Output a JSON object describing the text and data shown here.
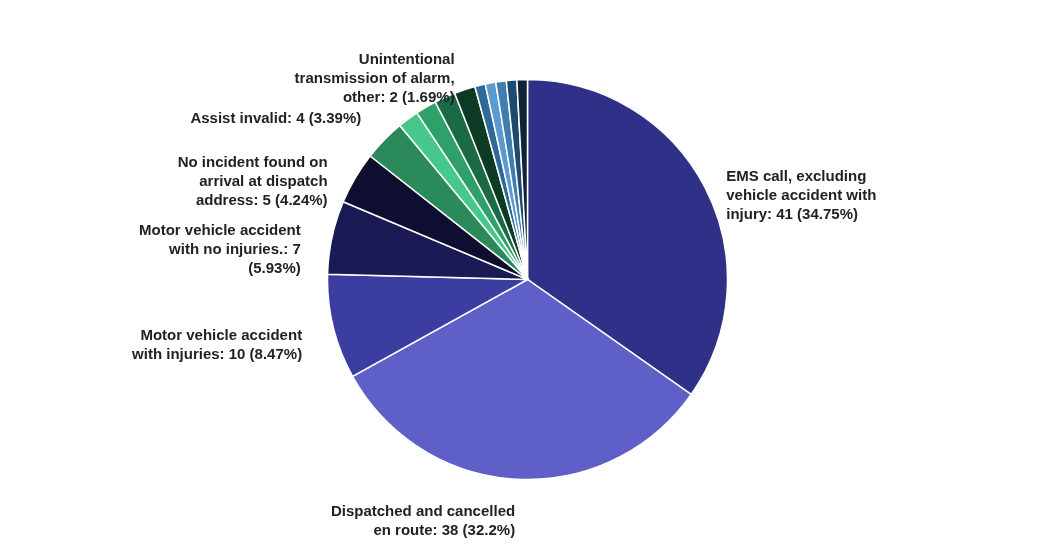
{
  "chart_data": {
    "type": "pie",
    "categories": [
      "EMS call, excluding vehicle accident with injury",
      "Dispatched and cancelled en route",
      "Motor vehicle accident with injuries",
      "Motor vehicle accident with no injuries.",
      "No incident found on arrival at dispatch address",
      "Assist invalid",
      null,
      null,
      null,
      "Unintentional transmission of alarm, other",
      null,
      null,
      null,
      null,
      null
    ],
    "values": [
      41,
      38,
      10,
      7,
      5,
      4,
      2,
      2,
      2,
      2,
      1,
      1,
      1,
      1,
      1
    ],
    "value_labels": [
      "41 (34.75%)",
      "38 (32.2%)",
      "10 (8.47%)",
      "7 (5.93%)",
      "5 (4.24%)",
      "4 (3.39%)",
      null,
      null,
      null,
      "2 (1.69%)",
      null,
      null,
      null,
      null,
      null
    ],
    "colors": [
      "#2e3187",
      "#5e60c8",
      "#3b3ea0",
      "#1a1a55",
      "#0e0e30",
      "#2a8a5a",
      "#45c88a",
      "#2fa06a",
      "#1a6a45",
      "#0c3a22",
      "#2d6a9a",
      "#5a9ad0",
      "#3e7fb0",
      "#1e4a70",
      "#0e2238"
    ]
  }
}
